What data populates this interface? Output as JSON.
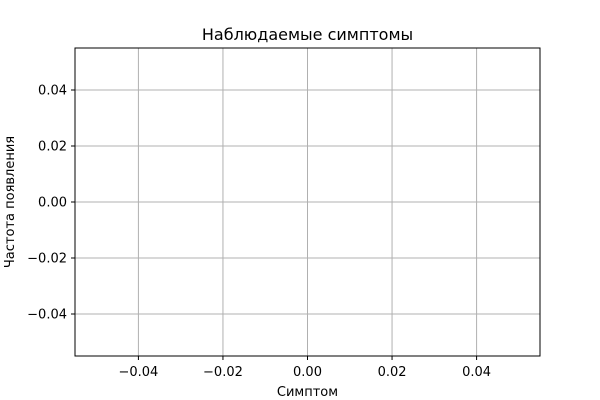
{
  "chart_data": {
    "type": "scatter",
    "title": "Наблюдаемые симптомы",
    "xlabel": "Симптом",
    "ylabel": "Частота появления",
    "series": [],
    "xlim": [
      -0.055,
      0.055
    ],
    "ylim": [
      -0.055,
      0.055
    ],
    "x_ticks": [
      -0.04,
      -0.02,
      0.0,
      0.02,
      0.04
    ],
    "y_ticks": [
      -0.04,
      -0.02,
      0.0,
      0.02,
      0.04
    ],
    "x_tick_labels": [
      "−0.04",
      "−0.02",
      "0.00",
      "0.02",
      "0.04"
    ],
    "y_tick_labels": [
      "−0.04",
      "−0.02",
      "0.00",
      "0.02",
      "0.04"
    ],
    "grid": true,
    "legend": "none"
  }
}
